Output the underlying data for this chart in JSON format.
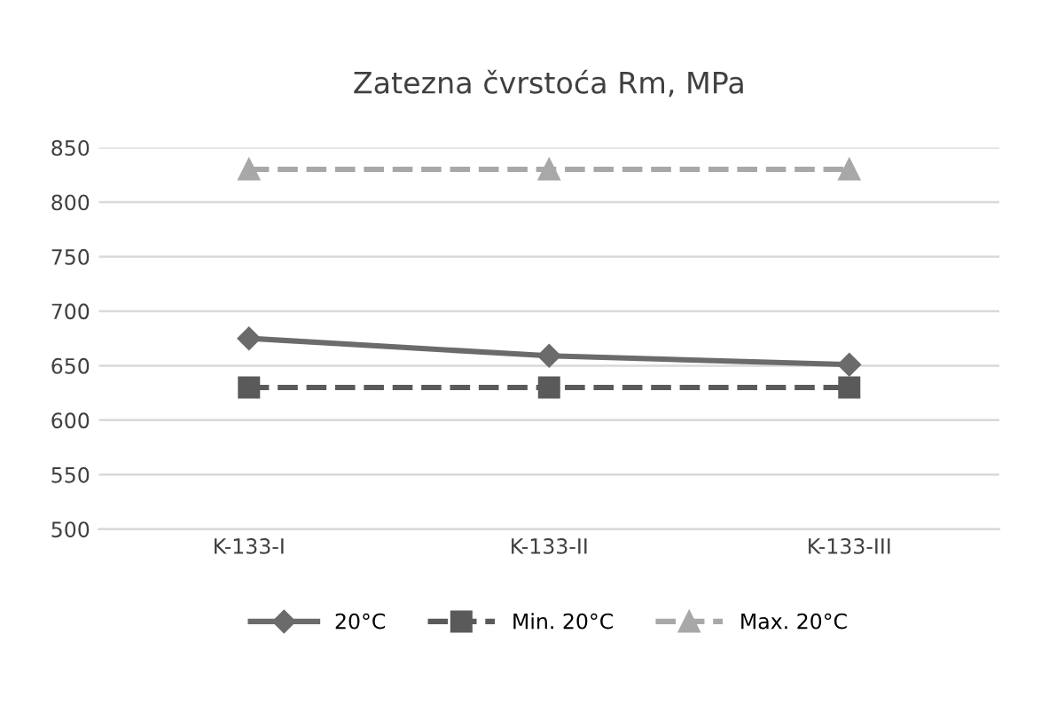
{
  "chart_data": {
    "type": "line",
    "title": "Zatezna čvrstoća Rm, MPa",
    "categories": [
      "K-133-I",
      "K-133-II",
      "K-133-III"
    ],
    "series": [
      {
        "name": "20°C",
        "color": "#6b6b6b",
        "values": [
          675,
          659,
          651
        ],
        "marker": "diamond",
        "line_style": "solid"
      },
      {
        "name": "Min. 20°C",
        "color": "#5a5a5a",
        "values": [
          630,
          630,
          630
        ],
        "marker": "square",
        "line_style": "dashed"
      },
      {
        "name": "Max. 20°C",
        "color": "#a8a8a8",
        "values": [
          830,
          830,
          830
        ],
        "marker": "triangle",
        "line_style": "dashed"
      }
    ],
    "ylim": [
      500,
      850
    ],
    "yticks": [
      500,
      550,
      600,
      650,
      700,
      750,
      800,
      850
    ],
    "grid": "y",
    "legend": "bottom"
  }
}
